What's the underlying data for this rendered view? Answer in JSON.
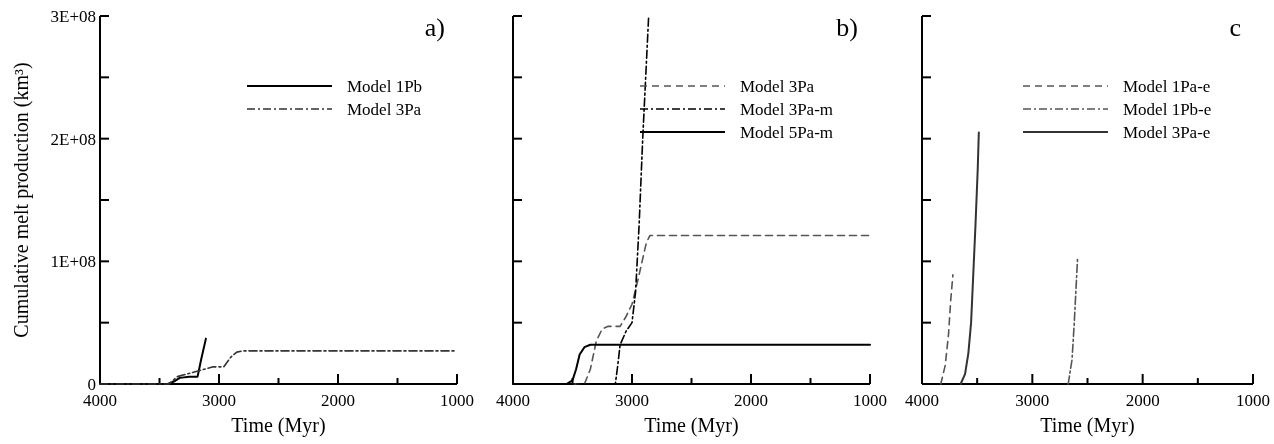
{
  "chart_data": [
    {
      "type": "line",
      "title": "a)",
      "xlabel": "Time (Myr)",
      "ylabel": "Cumulative melt production (km³)",
      "xlim": [
        4000,
        1000
      ],
      "ylim": [
        0,
        300000000
      ],
      "xticks": [
        4000,
        {
          "value": 3500,
          "label": null
        },
        3000,
        {
          "value": 2500,
          "label": null
        },
        2000,
        {
          "value": 1500,
          "label": null
        },
        1000
      ],
      "yticks": [
        {
          "value": 0,
          "label": "0"
        },
        {
          "value": 50000000,
          "label": null
        },
        {
          "value": 100000000,
          "label": "1E+08"
        },
        {
          "value": 150000000,
          "label": null
        },
        {
          "value": 200000000,
          "label": "2E+08"
        },
        {
          "value": 250000000,
          "label": null
        },
        {
          "value": 300000000,
          "label": "3E+08"
        }
      ],
      "grid": false,
      "legend": "top right",
      "marker": "none",
      "series": [
        {
          "name": "Model 1Pb",
          "color": "#000000",
          "line_style": "solid",
          "x": [
            4000,
            3430,
            3380,
            3330,
            3250,
            3180,
            3150,
            3110
          ],
          "values": [
            0,
            0,
            2000000,
            5000000,
            6000000,
            6000000,
            20000000,
            37000000
          ]
        },
        {
          "name": "Model 3Pa",
          "color": "#333333",
          "line_style": "dashdot",
          "x": [
            4000,
            3420,
            3350,
            3200,
            3050,
            2960,
            2900,
            2850,
            2800,
            1000
          ],
          "values": [
            0,
            0,
            6000000,
            10000000,
            14000000,
            14000000,
            22000000,
            26000000,
            27000000,
            27000000
          ]
        }
      ]
    },
    {
      "type": "line",
      "title": "b)",
      "xlabel": "Time (Myr)",
      "xlim": [
        4000,
        1000
      ],
      "ylim": [
        0,
        300000000
      ],
      "tick_labels": "x",
      "xticks": [
        4000,
        {
          "value": 3500,
          "label": null
        },
        3000,
        {
          "value": 2500,
          "label": null
        },
        2000,
        {
          "value": 1500,
          "label": null
        },
        1000
      ],
      "yticks": [
        0,
        {
          "value": 50000000,
          "label": null
        },
        {
          "value": 100000000,
          "label": null
        },
        {
          "value": 150000000,
          "label": null
        },
        {
          "value": 200000000,
          "label": null
        },
        {
          "value": 250000000,
          "label": null
        },
        {
          "value": 300000000,
          "label": null
        }
      ],
      "grid": false,
      "legend": "top right",
      "marker": "none",
      "series": [
        {
          "name": "Model 3Pa",
          "color": "#555555",
          "line_style": "dashed",
          "x": [
            4000,
            3400,
            3350,
            3300,
            3250,
            3200,
            3100,
            3050,
            3000,
            2950,
            2880,
            2850,
            2800,
            1000
          ],
          "values": [
            0,
            0,
            12000000,
            35000000,
            45000000,
            47000000,
            47000000,
            55000000,
            65000000,
            85000000,
            115000000,
            121000000,
            121000000,
            121000000
          ]
        },
        {
          "name": "Model 3Pa-m",
          "color": "#000000",
          "line_style": "dashdot",
          "x": [
            4000,
            3140,
            3120,
            3100,
            3050,
            3000,
            2970,
            2940,
            2910,
            2880,
            2860
          ],
          "values": [
            0,
            0,
            15000000,
            32000000,
            43000000,
            50000000,
            75000000,
            130000000,
            200000000,
            260000000,
            300000000
          ]
        },
        {
          "name": "Model 5Pa-m",
          "color": "#000000",
          "line_style": "solid",
          "x": [
            4000,
            3550,
            3500,
            3470,
            3440,
            3400,
            3350,
            3300,
            1000
          ],
          "values": [
            0,
            0,
            3000000,
            12000000,
            24000000,
            30000000,
            32000000,
            32000000,
            32000000
          ]
        }
      ]
    },
    {
      "type": "line",
      "title": "c",
      "xlabel": "Time (Myr)",
      "xlim": [
        4000,
        1000
      ],
      "ylim": [
        0,
        300000000
      ],
      "tick_labels": "x",
      "xticks": [
        4000,
        {
          "value": 3500,
          "label": null
        },
        3000,
        {
          "value": 2500,
          "label": null
        },
        2000,
        {
          "value": 1500,
          "label": null
        },
        1000
      ],
      "yticks": [
        0,
        {
          "value": 50000000,
          "label": null
        },
        {
          "value": 100000000,
          "label": null
        },
        {
          "value": 150000000,
          "label": null
        },
        {
          "value": 200000000,
          "label": null
        },
        {
          "value": 250000000,
          "label": null
        },
        {
          "value": 300000000,
          "label": null
        }
      ],
      "grid": false,
      "legend": "top right",
      "marker": "none",
      "series": [
        {
          "name": "Model 1Pa-e",
          "color": "#555555",
          "line_style": "dashed",
          "x": [
            3830,
            3790,
            3760,
            3740,
            3720
          ],
          "values": [
            0,
            15000000,
            40000000,
            68000000,
            89000000
          ]
        },
        {
          "name": "Model 1Pb-e",
          "color": "#555555",
          "line_style": "dashdot",
          "x": [
            2675,
            2640,
            2620,
            2600,
            2590
          ],
          "values": [
            0,
            20000000,
            50000000,
            85000000,
            103000000
          ]
        },
        {
          "name": "Model 3Pa-e",
          "color": "#333333",
          "line_style": "solid",
          "x": [
            3650,
            3610,
            3580,
            3555,
            3535,
            3515,
            3495,
            3485
          ],
          "values": [
            0,
            8000000,
            25000000,
            50000000,
            90000000,
            130000000,
            175000000,
            205000000
          ]
        }
      ]
    }
  ]
}
